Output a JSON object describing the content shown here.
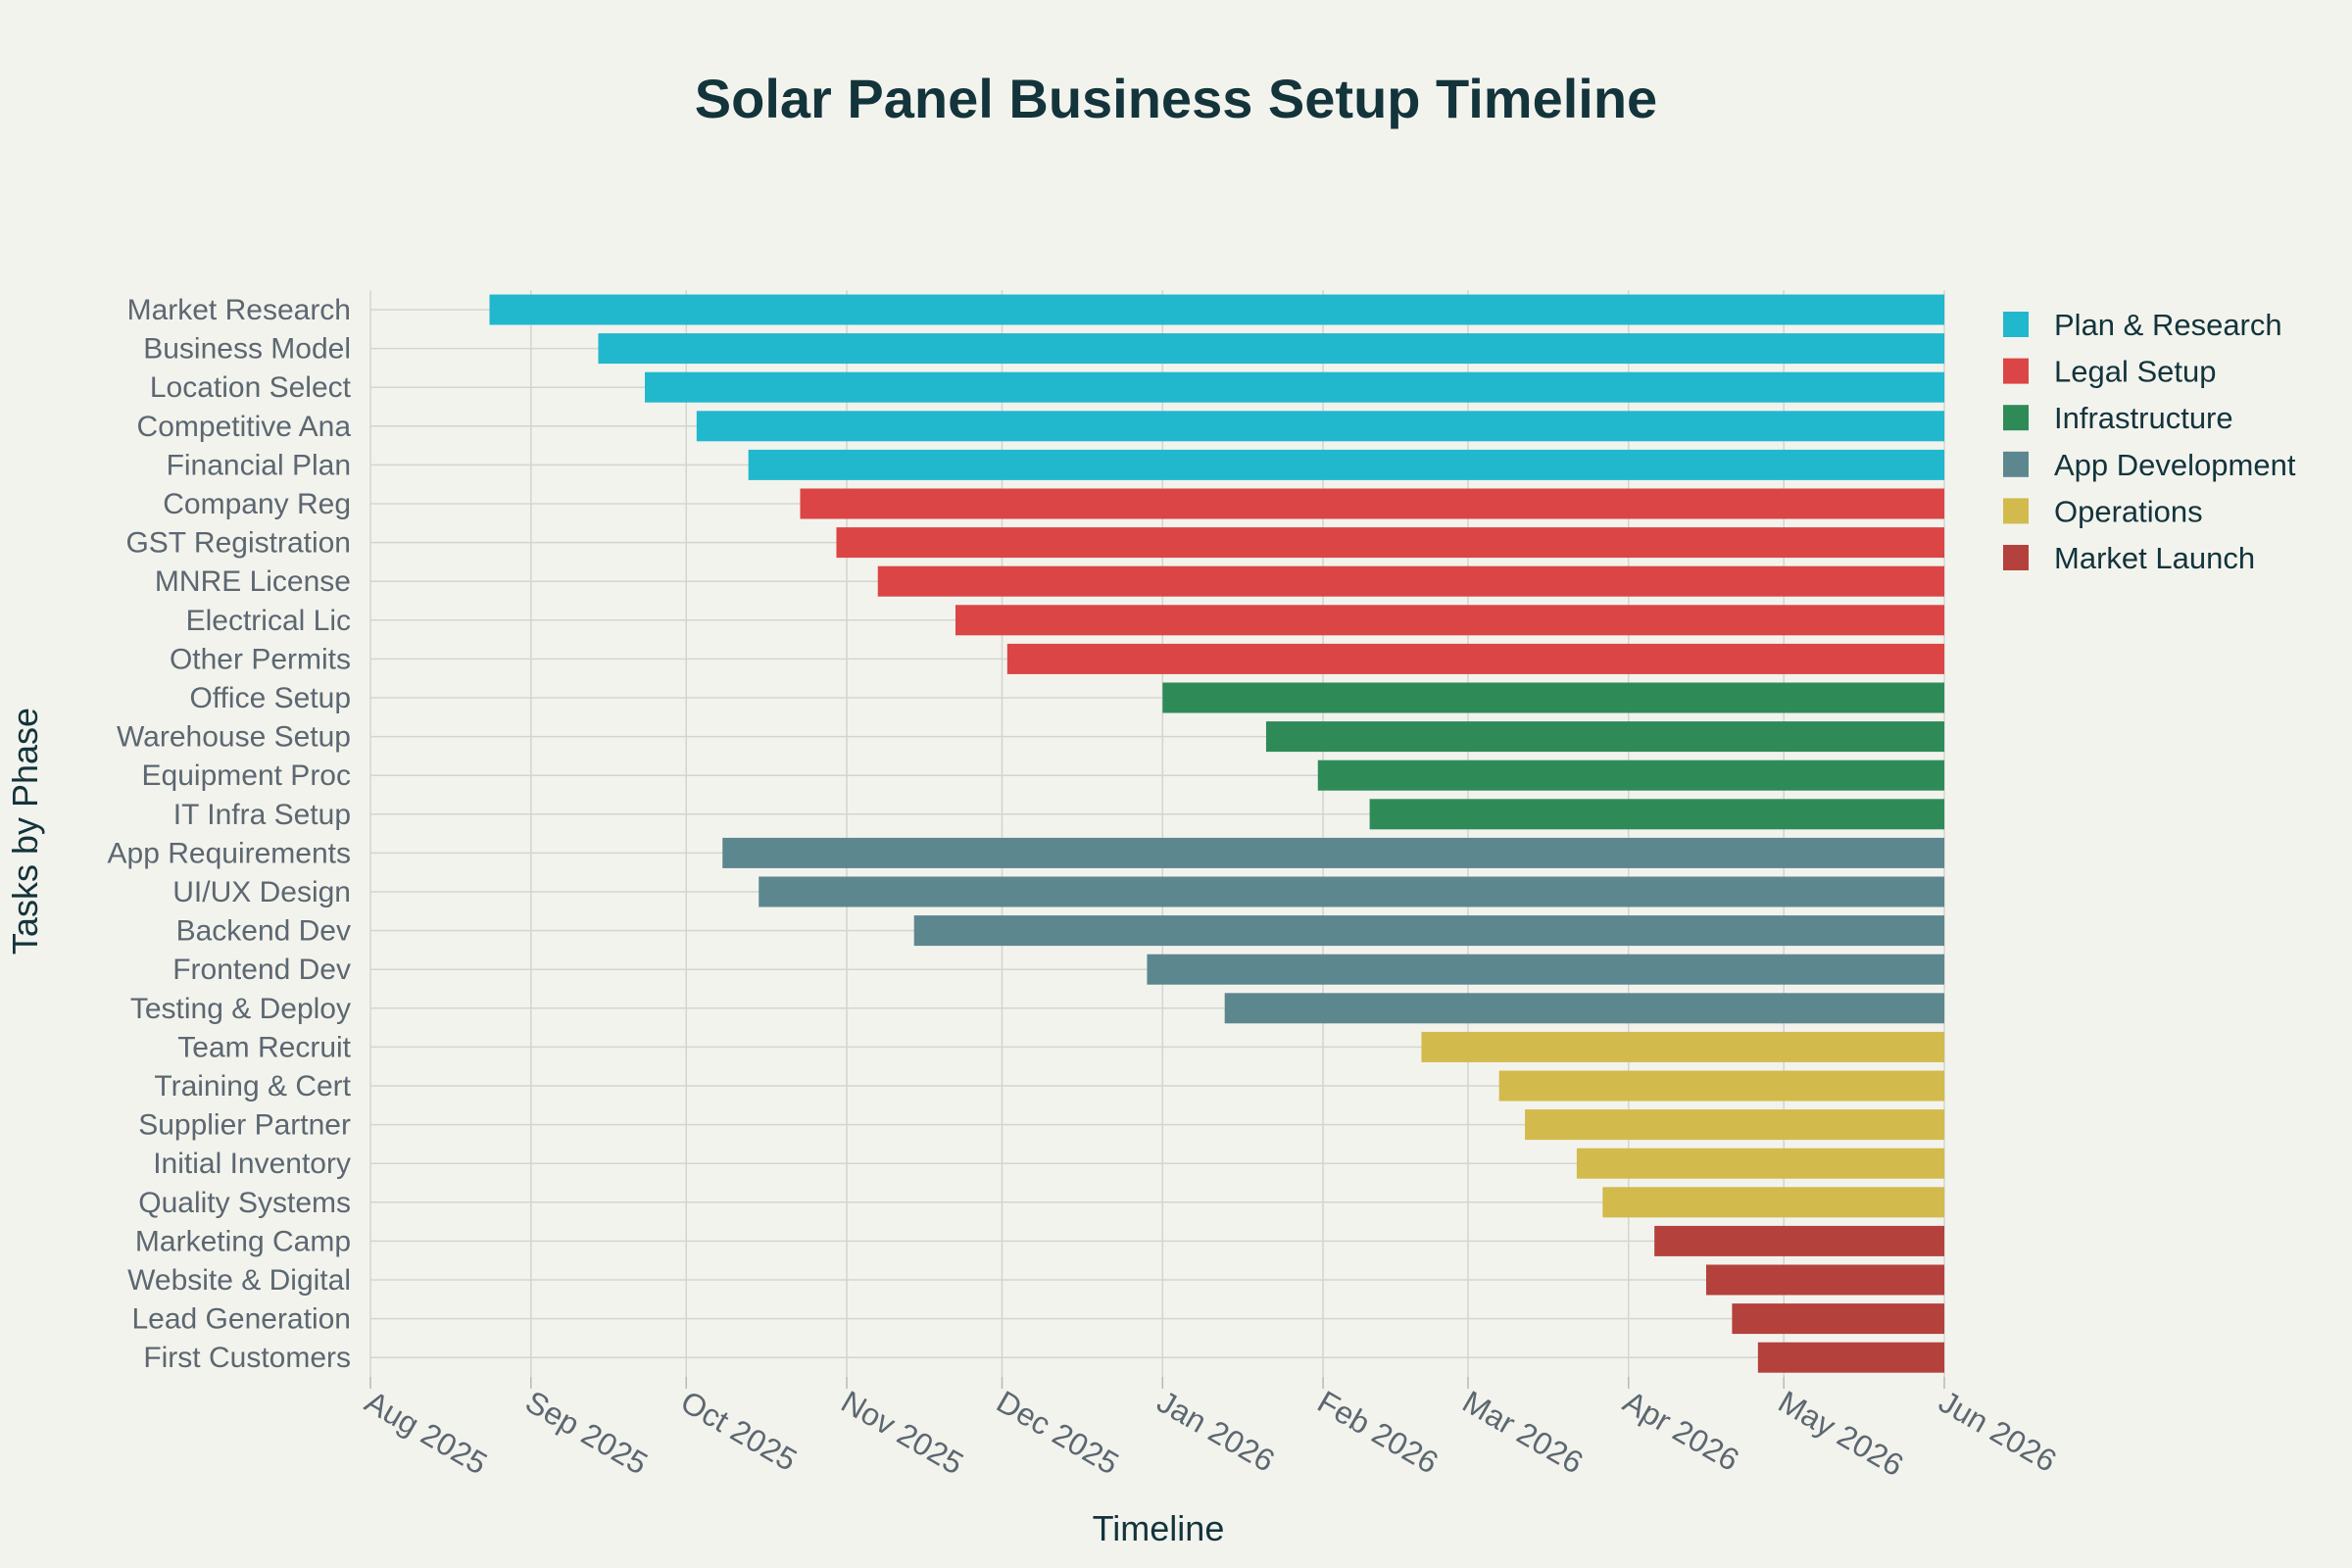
{
  "chart_data": {
    "type": "gantt",
    "title": "Solar Panel Business Setup Timeline",
    "xlabel": "Timeline",
    "ylabel": "Tasks by Phase",
    "x_range": [
      "2025-08-01",
      "2026-06-01"
    ],
    "x_ticks": [
      {
        "date": "2025-08-01",
        "label": "Aug 2025"
      },
      {
        "date": "2025-09-01",
        "label": "Sep 2025"
      },
      {
        "date": "2025-10-01",
        "label": "Oct 2025"
      },
      {
        "date": "2025-11-01",
        "label": "Nov 2025"
      },
      {
        "date": "2025-12-01",
        "label": "Dec 2025"
      },
      {
        "date": "2026-01-01",
        "label": "Jan 2026"
      },
      {
        "date": "2026-02-01",
        "label": "Feb 2026"
      },
      {
        "date": "2026-03-01",
        "label": "Mar 2026"
      },
      {
        "date": "2026-04-01",
        "label": "Apr 2026"
      },
      {
        "date": "2026-05-01",
        "label": "May 2026"
      },
      {
        "date": "2026-06-01",
        "label": "Jun 2026"
      }
    ],
    "phases": [
      {
        "name": "Plan & Research",
        "color": "#21b8cd"
      },
      {
        "name": "Legal Setup",
        "color": "#db4545"
      },
      {
        "name": "Infrastructure",
        "color": "#2e8b57"
      },
      {
        "name": "App Development",
        "color": "#5d878f"
      },
      {
        "name": "Operations",
        "color": "#d2ba4c"
      },
      {
        "name": "Market Launch",
        "color": "#b4413c"
      }
    ],
    "tasks": [
      {
        "name": "Market Research",
        "phase": "Plan & Research",
        "start": "2025-08-24",
        "end": "2026-06-01"
      },
      {
        "name": "Business Model",
        "phase": "Plan & Research",
        "start": "2025-09-14",
        "end": "2026-06-01"
      },
      {
        "name": "Location Select",
        "phase": "Plan & Research",
        "start": "2025-09-23",
        "end": "2026-06-01"
      },
      {
        "name": "Competitive Ana",
        "phase": "Plan & Research",
        "start": "2025-10-03",
        "end": "2026-06-01"
      },
      {
        "name": "Financial Plan",
        "phase": "Plan & Research",
        "start": "2025-10-13",
        "end": "2026-06-01"
      },
      {
        "name": "Company Reg",
        "phase": "Legal Setup",
        "start": "2025-10-23",
        "end": "2026-06-01"
      },
      {
        "name": "GST Registration",
        "phase": "Legal Setup",
        "start": "2025-10-30",
        "end": "2026-06-01"
      },
      {
        "name": "MNRE License",
        "phase": "Legal Setup",
        "start": "2025-11-07",
        "end": "2026-06-01"
      },
      {
        "name": "Electrical Lic",
        "phase": "Legal Setup",
        "start": "2025-11-22",
        "end": "2026-06-01"
      },
      {
        "name": "Other Permits",
        "phase": "Legal Setup",
        "start": "2025-12-02",
        "end": "2026-06-01"
      },
      {
        "name": "Office Setup",
        "phase": "Infrastructure",
        "start": "2026-01-01",
        "end": "2026-06-01"
      },
      {
        "name": "Warehouse Setup",
        "phase": "Infrastructure",
        "start": "2026-01-21",
        "end": "2026-06-01"
      },
      {
        "name": "Equipment Proc",
        "phase": "Infrastructure",
        "start": "2026-01-31",
        "end": "2026-06-01"
      },
      {
        "name": "IT Infra Setup",
        "phase": "Infrastructure",
        "start": "2026-02-10",
        "end": "2026-06-01"
      },
      {
        "name": "App Requirements",
        "phase": "App Development",
        "start": "2025-10-08",
        "end": "2026-06-01"
      },
      {
        "name": "UI/UX Design",
        "phase": "App Development",
        "start": "2025-10-15",
        "end": "2026-06-01"
      },
      {
        "name": "Backend Dev",
        "phase": "App Development",
        "start": "2025-11-14",
        "end": "2026-06-01"
      },
      {
        "name": "Frontend Dev",
        "phase": "App Development",
        "start": "2025-12-29",
        "end": "2026-06-01"
      },
      {
        "name": "Testing & Deploy",
        "phase": "App Development",
        "start": "2026-01-13",
        "end": "2026-06-01"
      },
      {
        "name": "Team Recruit",
        "phase": "Operations",
        "start": "2026-02-20",
        "end": "2026-06-01"
      },
      {
        "name": "Training & Cert",
        "phase": "Operations",
        "start": "2026-03-07",
        "end": "2026-06-01"
      },
      {
        "name": "Supplier Partner",
        "phase": "Operations",
        "start": "2026-03-12",
        "end": "2026-06-01"
      },
      {
        "name": "Initial Inventory",
        "phase": "Operations",
        "start": "2026-03-22",
        "end": "2026-06-01"
      },
      {
        "name": "Quality Systems",
        "phase": "Operations",
        "start": "2026-03-27",
        "end": "2026-06-01"
      },
      {
        "name": "Marketing Camp",
        "phase": "Market Launch",
        "start": "2026-04-06",
        "end": "2026-06-01"
      },
      {
        "name": "Website & Digital",
        "phase": "Market Launch",
        "start": "2026-04-16",
        "end": "2026-06-01"
      },
      {
        "name": "Lead Generation",
        "phase": "Market Launch",
        "start": "2026-04-21",
        "end": "2026-06-01"
      },
      {
        "name": "First Customers",
        "phase": "Market Launch",
        "start": "2026-04-26",
        "end": "2026-06-01"
      }
    ]
  }
}
